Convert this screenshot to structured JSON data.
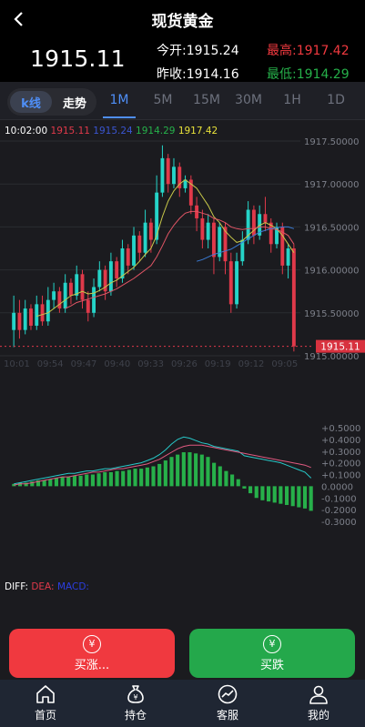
{
  "header": {
    "title": "现货黄金",
    "back_icon": "chevron-left-icon",
    "price": "1915.11",
    "open_label": "今开:",
    "open_value": "1915.24",
    "high_label": "最高:",
    "high_value": "1917.42",
    "prev_close_label": "昨收:",
    "prev_close_value": "1914.16",
    "low_label": "最低:",
    "low_value": "1914.29"
  },
  "tabs": {
    "kline_label": "k线",
    "trend_label": "走势",
    "periods": [
      "1M",
      "5M",
      "15M",
      "30M",
      "1H",
      "1D"
    ],
    "active_period": "1M"
  },
  "legend": {
    "time": "10:02:00",
    "v1": "1915.11",
    "v2": "1915.24",
    "v3": "1914.29",
    "v4": "1917.42"
  },
  "macd_legend": {
    "diff": "DIFF:",
    "dea": "DEA:",
    "macd": "MACD:"
  },
  "chart_data": {
    "type": "candlestick",
    "price_axis_ticks": [
      "1917.50000",
      "1917.00000",
      "1916.50000",
      "1916.00000",
      "1915.50000",
      "1915.00000"
    ],
    "current_price_tag": "1915.11",
    "time_ticks": [
      "10:01",
      "09:54",
      "09:47",
      "09:40",
      "09:33",
      "09:26",
      "09:19",
      "09:12",
      "09:05"
    ],
    "ylim": [
      1915.0,
      1917.5
    ],
    "candles": [
      [
        1915.3,
        1915.5,
        1915.7,
        1915.1
      ],
      [
        1915.5,
        1915.3,
        1915.65,
        1915.2
      ],
      [
        1915.3,
        1915.55,
        1915.65,
        1915.25
      ],
      [
        1915.55,
        1915.35,
        1915.6,
        1915.3
      ],
      [
        1915.35,
        1915.6,
        1915.7,
        1915.3
      ],
      [
        1915.6,
        1915.4,
        1915.7,
        1915.35
      ],
      [
        1915.4,
        1915.65,
        1915.8,
        1915.35
      ],
      [
        1915.65,
        1915.75,
        1915.85,
        1915.55
      ],
      [
        1915.75,
        1915.55,
        1915.8,
        1915.5
      ],
      [
        1915.55,
        1915.85,
        1915.95,
        1915.5
      ],
      [
        1915.85,
        1915.7,
        1915.9,
        1915.6
      ],
      [
        1915.7,
        1915.95,
        1916.05,
        1915.65
      ],
      [
        1915.95,
        1915.65,
        1916.0,
        1915.55
      ],
      [
        1915.65,
        1915.5,
        1915.75,
        1915.4
      ],
      [
        1915.5,
        1915.8,
        1915.9,
        1915.45
      ],
      [
        1915.8,
        1916.0,
        1916.1,
        1915.75
      ],
      [
        1916.0,
        1915.75,
        1916.05,
        1915.65
      ],
      [
        1915.75,
        1916.1,
        1916.2,
        1915.7
      ],
      [
        1916.1,
        1915.9,
        1916.15,
        1915.8
      ],
      [
        1915.9,
        1916.25,
        1916.35,
        1915.85
      ],
      [
        1916.25,
        1916.05,
        1916.3,
        1915.95
      ],
      [
        1916.05,
        1916.4,
        1916.5,
        1916.0
      ],
      [
        1916.4,
        1916.2,
        1916.45,
        1916.1
      ],
      [
        1916.2,
        1916.55,
        1916.7,
        1916.15
      ],
      [
        1916.55,
        1916.35,
        1916.6,
        1916.2
      ],
      [
        1916.35,
        1916.9,
        1917.1,
        1916.3
      ],
      [
        1916.9,
        1917.3,
        1917.45,
        1916.85
      ],
      [
        1917.3,
        1917.0,
        1917.35,
        1916.9
      ],
      [
        1917.0,
        1917.2,
        1917.3,
        1916.95
      ],
      [
        1917.2,
        1916.95,
        1917.25,
        1916.85
      ],
      [
        1916.95,
        1917.05,
        1917.1,
        1916.9
      ],
      [
        1917.05,
        1916.75,
        1917.1,
        1916.65
      ],
      [
        1916.75,
        1916.6,
        1916.85,
        1916.45
      ],
      [
        1916.6,
        1916.35,
        1916.7,
        1916.25
      ],
      [
        1916.35,
        1916.55,
        1916.65,
        1916.25
      ],
      [
        1916.55,
        1916.15,
        1916.6,
        1915.95
      ],
      [
        1916.15,
        1916.5,
        1916.55,
        1916.1
      ],
      [
        1916.5,
        1916.1,
        1916.55,
        1915.95
      ],
      [
        1916.1,
        1915.6,
        1916.2,
        1915.5
      ],
      [
        1915.6,
        1916.1,
        1916.2,
        1915.55
      ],
      [
        1916.1,
        1916.35,
        1916.45,
        1916.05
      ],
      [
        1916.35,
        1916.7,
        1916.8,
        1916.3
      ],
      [
        1916.7,
        1916.4,
        1916.75,
        1916.3
      ],
      [
        1916.4,
        1916.65,
        1916.75,
        1916.35
      ],
      [
        1916.65,
        1916.55,
        1916.85,
        1916.45
      ],
      [
        1916.55,
        1916.3,
        1916.6,
        1916.2
      ],
      [
        1916.3,
        1916.5,
        1916.55,
        1916.25
      ],
      [
        1916.5,
        1916.05,
        1916.55,
        1915.95
      ],
      [
        1916.05,
        1916.25,
        1916.3,
        1915.9
      ],
      [
        1916.25,
        1915.11,
        1916.3,
        1915.05
      ]
    ],
    "ma_lines": [
      {
        "color": "#c9c94a",
        "values": [
          null,
          null,
          null,
          null,
          1915.46,
          1915.48,
          1915.5,
          1915.55,
          1915.6,
          1915.65,
          1915.7,
          1915.72,
          1915.75,
          1915.72,
          1915.73,
          1915.76,
          1915.8,
          1915.85,
          1915.88,
          1915.93,
          1915.98,
          1916.03,
          1916.1,
          1916.18,
          1916.25,
          1916.4,
          1916.62,
          1916.8,
          1916.92,
          1917.0,
          1917.05,
          1917.0,
          1916.95,
          1916.85,
          1916.75,
          1916.62,
          1916.55,
          1916.45,
          1916.38,
          1916.32,
          1916.34,
          1916.4,
          1916.46,
          1916.52,
          1916.55,
          1916.52,
          1916.48,
          1916.4,
          1916.3,
          1916.2
        ]
      },
      {
        "color": "#e05565",
        "values": [
          null,
          null,
          null,
          null,
          null,
          null,
          null,
          null,
          null,
          1915.55,
          1915.58,
          1915.62,
          1915.64,
          1915.66,
          1915.68,
          1915.7,
          1915.72,
          1915.75,
          1915.78,
          1915.82,
          1915.86,
          1915.9,
          1915.95,
          1916.0,
          1916.05,
          1916.15,
          1916.28,
          1916.42,
          1916.52,
          1916.6,
          1916.66,
          1916.68,
          1916.68,
          1916.66,
          1916.64,
          1916.6,
          1916.58,
          1916.55,
          1916.5,
          1916.48,
          1916.47,
          1916.48,
          1916.48,
          1916.5,
          1916.5,
          1916.48,
          1916.47,
          1916.44,
          1916.4,
          1916.3
        ]
      },
      {
        "color": "#3a7bd5",
        "values": [
          null,
          null,
          null,
          null,
          null,
          null,
          null,
          null,
          null,
          null,
          null,
          null,
          null,
          null,
          null,
          null,
          null,
          null,
          null,
          null,
          null,
          null,
          null,
          null,
          null,
          null,
          null,
          null,
          null,
          null,
          null,
          null,
          1916.1,
          1916.12,
          1916.15,
          1916.18,
          1916.2,
          1916.22,
          1916.24,
          1916.28,
          1916.32,
          1916.36,
          1916.4,
          1916.44,
          1916.46,
          1916.48,
          1916.49,
          1916.5,
          1916.5,
          1916.48
        ]
      }
    ],
    "macd_axis_ticks": [
      "+0.5000",
      "+0.4000",
      "+0.3000",
      "+0.2000",
      "+0.1000",
      "0.0000",
      "-0.1000",
      "-0.2000",
      "-0.3000"
    ],
    "macd_ylim": [
      -0.3,
      0.5
    ],
    "macd_bars": [
      0.02,
      0.03,
      0.03,
      0.04,
      0.05,
      0.05,
      0.06,
      0.07,
      0.08,
      0.08,
      0.09,
      0.09,
      0.1,
      0.1,
      0.11,
      0.12,
      0.12,
      0.13,
      0.13,
      0.14,
      0.15,
      0.15,
      0.16,
      0.17,
      0.19,
      0.22,
      0.25,
      0.27,
      0.29,
      0.29,
      0.28,
      0.27,
      0.25,
      0.2,
      0.17,
      0.13,
      0.1,
      0.06,
      -0.02,
      -0.06,
      -0.1,
      -0.12,
      -0.13,
      -0.14,
      -0.15,
      -0.16,
      -0.17,
      -0.18,
      -0.19,
      -0.21
    ],
    "diff_line": [
      0.02,
      0.03,
      0.04,
      0.05,
      0.06,
      0.07,
      0.08,
      0.09,
      0.1,
      0.11,
      0.11,
      0.12,
      0.13,
      0.13,
      0.14,
      0.15,
      0.15,
      0.16,
      0.17,
      0.18,
      0.19,
      0.2,
      0.22,
      0.24,
      0.27,
      0.31,
      0.36,
      0.4,
      0.42,
      0.41,
      0.39,
      0.37,
      0.36,
      0.34,
      0.33,
      0.32,
      0.31,
      0.3,
      0.26,
      0.25,
      0.24,
      0.23,
      0.22,
      0.21,
      0.2,
      0.18,
      0.16,
      0.14,
      0.12,
      0.07
    ],
    "dea_line": [
      0.01,
      0.02,
      0.02,
      0.03,
      0.04,
      0.05,
      0.06,
      0.07,
      0.08,
      0.08,
      0.09,
      0.1,
      0.11,
      0.12,
      0.12,
      0.13,
      0.14,
      0.15,
      0.15,
      0.16,
      0.17,
      0.18,
      0.19,
      0.21,
      0.23,
      0.26,
      0.29,
      0.32,
      0.34,
      0.35,
      0.35,
      0.35,
      0.34,
      0.33,
      0.32,
      0.31,
      0.3,
      0.29,
      0.28,
      0.27,
      0.26,
      0.25,
      0.24,
      0.23,
      0.22,
      0.21,
      0.2,
      0.19,
      0.18,
      0.16
    ]
  },
  "actions": {
    "buy_up_label": "买涨...",
    "buy_down_label": "买跌",
    "yen_glyph": "¥"
  },
  "nav": {
    "items": [
      {
        "label": "首页",
        "icon": "home-icon"
      },
      {
        "label": "持仓",
        "icon": "money-bag-icon"
      },
      {
        "label": "客服",
        "icon": "chart-circle-icon"
      },
      {
        "label": "我的",
        "icon": "user-icon"
      }
    ]
  },
  "colors": {
    "up": "#e0394a",
    "down": "#25d4c8",
    "buy_up_bg": "#f0393f",
    "buy_down_bg": "#24a84b",
    "accent": "#4f8ff7",
    "high": "#f0393f",
    "low": "#26b04a"
  }
}
